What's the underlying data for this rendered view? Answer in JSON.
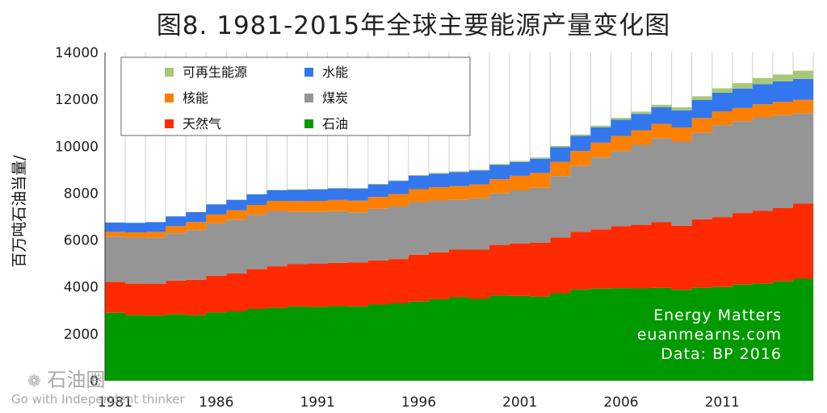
{
  "chart_data": {
    "type": "area",
    "title": "图8. 1981-2015年全球主要能源产量变化图",
    "ylabel": "百万吨石油当量/",
    "ylim": [
      0,
      14000
    ],
    "yticks": [
      0,
      2000,
      4000,
      6000,
      8000,
      10000,
      12000,
      14000
    ],
    "xticks": [
      "1981",
      "1986",
      "1991",
      "1996",
      "2001",
      "2006",
      "2011"
    ],
    "grid": "vertical",
    "legend_position": "top-left",
    "x": [
      1981,
      1982,
      1983,
      1984,
      1985,
      1986,
      1987,
      1988,
      1989,
      1990,
      1991,
      1992,
      1993,
      1994,
      1995,
      1996,
      1997,
      1998,
      1999,
      2000,
      2001,
      2002,
      2003,
      2004,
      2005,
      2006,
      2007,
      2008,
      2009,
      2010,
      2011,
      2012,
      2013,
      2014,
      2015
    ],
    "series": [
      {
        "name": "石油",
        "color": "#009900",
        "values": [
          2900,
          2800,
          2780,
          2830,
          2800,
          2920,
          2960,
          3060,
          3110,
          3170,
          3150,
          3180,
          3170,
          3250,
          3300,
          3380,
          3480,
          3560,
          3490,
          3640,
          3620,
          3590,
          3730,
          3890,
          3930,
          3950,
          3940,
          3960,
          3880,
          3970,
          4000,
          4100,
          4140,
          4240,
          4350
        ]
      },
      {
        "name": "天然气",
        "color": "#ff2a00",
        "values": [
          1320,
          1340,
          1350,
          1440,
          1510,
          1560,
          1620,
          1700,
          1770,
          1800,
          1850,
          1850,
          1870,
          1880,
          1890,
          1990,
          2000,
          2030,
          2100,
          2150,
          2230,
          2290,
          2380,
          2460,
          2530,
          2640,
          2710,
          2800,
          2730,
          2920,
          2980,
          3050,
          3100,
          3120,
          3200
        ]
      },
      {
        "name": "煤炭",
        "color": "#959595",
        "values": [
          1930,
          1970,
          1980,
          2020,
          2120,
          2240,
          2290,
          2320,
          2360,
          2240,
          2200,
          2200,
          2140,
          2200,
          2240,
          2250,
          2210,
          2140,
          2190,
          2200,
          2270,
          2350,
          2620,
          2810,
          3060,
          3210,
          3410,
          3580,
          3590,
          3690,
          3920,
          3920,
          3990,
          3960,
          3850
        ]
      },
      {
        "name": "核能",
        "color": "#ff8000",
        "values": [
          200,
          220,
          240,
          300,
          340,
          370,
          400,
          420,
          430,
          450,
          470,
          480,
          500,
          510,
          530,
          550,
          560,
          570,
          590,
          600,
          620,
          630,
          610,
          640,
          630,
          640,
          620,
          610,
          600,
          620,
          590,
          560,
          560,
          570,
          580
        ]
      },
      {
        "name": "水能",
        "color": "#3377ee",
        "values": [
          390,
          400,
          410,
          420,
          420,
          430,
          440,
          450,
          450,
          480,
          490,
          490,
          510,
          530,
          560,
          570,
          580,
          590,
          590,
          610,
          590,
          610,
          620,
          640,
          660,
          690,
          700,
          710,
          730,
          770,
          790,
          830,
          860,
          870,
          890
        ]
      },
      {
        "name": "可再生能源",
        "color": "#a8c878",
        "values": [
          10,
          10,
          10,
          10,
          10,
          10,
          15,
          15,
          20,
          20,
          20,
          20,
          25,
          25,
          25,
          30,
          30,
          35,
          35,
          40,
          45,
          50,
          55,
          60,
          70,
          80,
          95,
          110,
          130,
          160,
          190,
          230,
          260,
          300,
          350
        ]
      }
    ],
    "legend_order": [
      "可再生能源",
      "水能",
      "核能",
      "煤炭",
      "天然气",
      "石油"
    ],
    "annotations": [
      "Energy Matters",
      "euanmearns.com",
      "Data: BP 2016"
    ]
  },
  "watermark": {
    "name": "石油圈",
    "tagline": "Go with Independent thinker"
  }
}
